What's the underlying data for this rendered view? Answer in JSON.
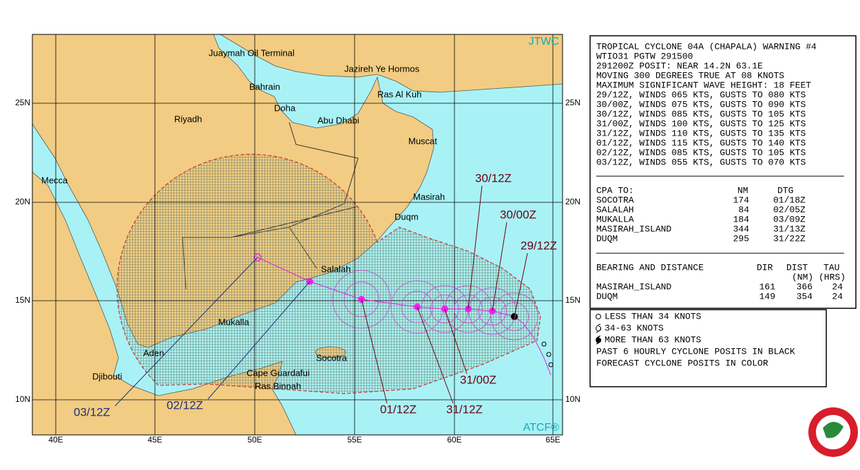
{
  "header": {
    "agency": "JTWC",
    "model": "ATCF®"
  },
  "map": {
    "lat_labels": [
      "25N",
      "20N",
      "15N",
      "10N"
    ],
    "lon_labels": [
      "40E",
      "45E",
      "50E",
      "55E",
      "60E",
      "65E"
    ],
    "places": [
      "Juaymah Oil Terminal",
      "Jazireh Ye Hormos",
      "Bahrain",
      "Ras Al Kuh",
      "Doha",
      "Riyadh",
      "Abu Dhabi",
      "Muscat",
      "Mecca",
      "Masirah",
      "Duqm",
      "Salalah",
      "Mukalla",
      "Aden",
      "Socotra",
      "Djibouti",
      "Cape Guardafui",
      "Ras Binnah"
    ],
    "forecast_labels": [
      "29/12Z",
      "30/00Z",
      "30/12Z",
      "31/00Z",
      "31/12Z",
      "01/12Z",
      "02/12Z",
      "03/12Z"
    ]
  },
  "warning": {
    "lines": [
      "TROPICAL CYCLONE 04A (CHAPALA) WARNING #4",
      "WTIO31 PGTW 291500",
      "291200Z POSIT: NEAR 14.2N 63.1E",
      "MOVING 300 DEGREES TRUE AT 08 KNOTS",
      "MAXIMUM SIGNIFICANT WAVE HEIGHT: 18 FEET",
      "29/12Z, WINDS 065 KTS, GUSTS TO 080 KTS",
      "30/00Z, WINDS 075 KTS, GUSTS TO 090 KTS",
      "30/12Z, WINDS 085 KTS, GUSTS TO 105 KTS",
      "31/00Z, WINDS 100 KTS, GUSTS TO 125 KTS",
      "31/12Z, WINDS 110 KTS, GUSTS TO 135 KTS",
      "01/12Z, WINDS 115 KTS, GUSTS TO 140 KTS",
      "02/12Z, WINDS 085 KTS, GUSTS TO 105 KTS",
      "03/12Z, WINDS 055 KTS, GUSTS TO 070 KTS"
    ]
  },
  "cpa": {
    "header": [
      "CPA TO:",
      "NM",
      "DTG"
    ],
    "rows": [
      [
        "SOCOTRA",
        "174",
        "01/18Z"
      ],
      [
        "SALALAH",
        "84",
        "02/05Z"
      ],
      [
        "MUKALLA",
        "184",
        "03/09Z"
      ],
      [
        "MASIRAH_ISLAND",
        "344",
        "31/13Z"
      ],
      [
        "DUQM",
        "295",
        "31/22Z"
      ]
    ]
  },
  "bearing": {
    "header": [
      "BEARING AND DISTANCE",
      "DIR",
      "DIST",
      "TAU"
    ],
    "subheader": [
      "(NM)",
      "(HRS)"
    ],
    "rows": [
      [
        "MASIRAH_ISLAND",
        "161",
        "366",
        "24"
      ],
      [
        "DUQM",
        "149",
        "354",
        "24"
      ]
    ]
  },
  "legend": {
    "items": [
      "LESS THAN 34 KNOTS",
      "34-63 KNOTS",
      "MORE THAN 63 KNOTS"
    ],
    "notes": [
      "PAST 6 HOURLY CYCLONE POSITS IN BLACK",
      "FORECAST CYCLONE POSITS IN COLOR"
    ]
  }
}
